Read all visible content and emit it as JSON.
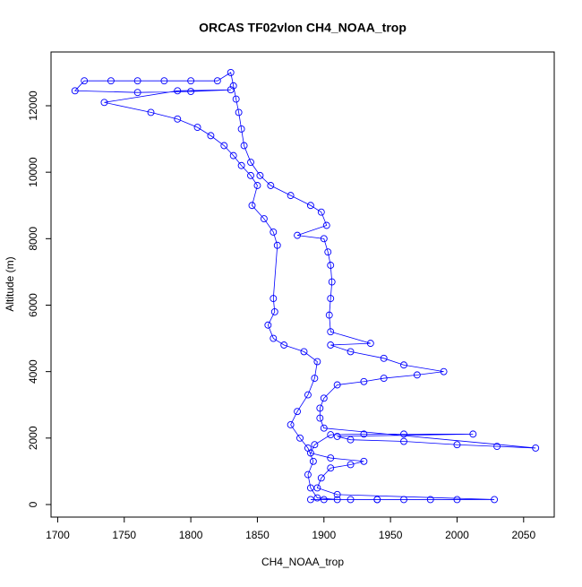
{
  "chart_data": {
    "type": "line",
    "markers": "open-circle",
    "color": "#0000ff",
    "title": "ORCAS TF02vlon CH4_NOAA_trop",
    "xlabel": "CH4_NOAA_trop",
    "ylabel": "Altitude (m)",
    "xlim": [
      1695,
      2073
    ],
    "ylim": [
      -378,
      13618
    ],
    "xticks": [
      1700,
      1750,
      1800,
      1850,
      1900,
      1950,
      2000,
      2050
    ],
    "yticks": [
      0,
      2000,
      4000,
      6000,
      8000,
      10000,
      12000
    ],
    "x": [
      1890,
      1900,
      1920,
      1940,
      1960,
      1980,
      2000,
      2028,
      1910,
      1895,
      1898,
      1905,
      1920,
      1930,
      1905,
      1890,
      1893,
      1905,
      1930,
      1960,
      2012,
      1910,
      1920,
      1960,
      2000,
      2030,
      2059,
      1900,
      1897,
      1897,
      1900,
      1910,
      1930,
      1945,
      1970,
      1990,
      1960,
      1945,
      1920,
      1905,
      1935,
      1905,
      1904,
      1905,
      1906,
      1905,
      1903,
      1900,
      1880,
      1902,
      1898,
      1890,
      1875,
      1860,
      1852,
      1845,
      1840,
      1838,
      1836,
      1834,
      1832,
      1830,
      1820,
      1800,
      1780,
      1760,
      1740,
      1720,
      1713,
      1760,
      1800,
      1830,
      1790,
      1735,
      1770,
      1790,
      1805,
      1815,
      1825,
      1832,
      1838,
      1845,
      1850,
      1846,
      1855,
      1862,
      1865,
      1862,
      1863,
      1858,
      1862,
      1870,
      1885,
      1895,
      1893,
      1888,
      1880,
      1875,
      1882,
      1888,
      1892,
      1888,
      1890,
      1895,
      1910,
      1940
    ],
    "y": [
      150,
      150,
      150,
      150,
      150,
      150,
      150,
      150,
      300,
      500,
      800,
      1100,
      1200,
      1300,
      1400,
      1550,
      1800,
      2100,
      2120,
      2120,
      2120,
      2050,
      1950,
      1900,
      1800,
      1750,
      1700,
      2300,
      2600,
      2900,
      3200,
      3600,
      3700,
      3800,
      3900,
      4000,
      4200,
      4400,
      4600,
      4800,
      4850,
      5200,
      5700,
      6200,
      6700,
      7200,
      7600,
      8000,
      8100,
      8400,
      8800,
      9000,
      9300,
      9600,
      9900,
      10300,
      10800,
      11300,
      11800,
      12200,
      12600,
      13000,
      12750,
      12750,
      12750,
      12750,
      12750,
      12750,
      12450,
      12400,
      12430,
      12480,
      12450,
      12100,
      11800,
      11600,
      11350,
      11100,
      10800,
      10500,
      10200,
      9900,
      9600,
      9000,
      8600,
      8200,
      7800,
      6200,
      5800,
      5400,
      5000,
      4800,
      4600,
      4300,
      3800,
      3300,
      2800,
      2400,
      2000,
      1700,
      1300,
      900,
      500,
      200,
      150,
      150
    ]
  }
}
